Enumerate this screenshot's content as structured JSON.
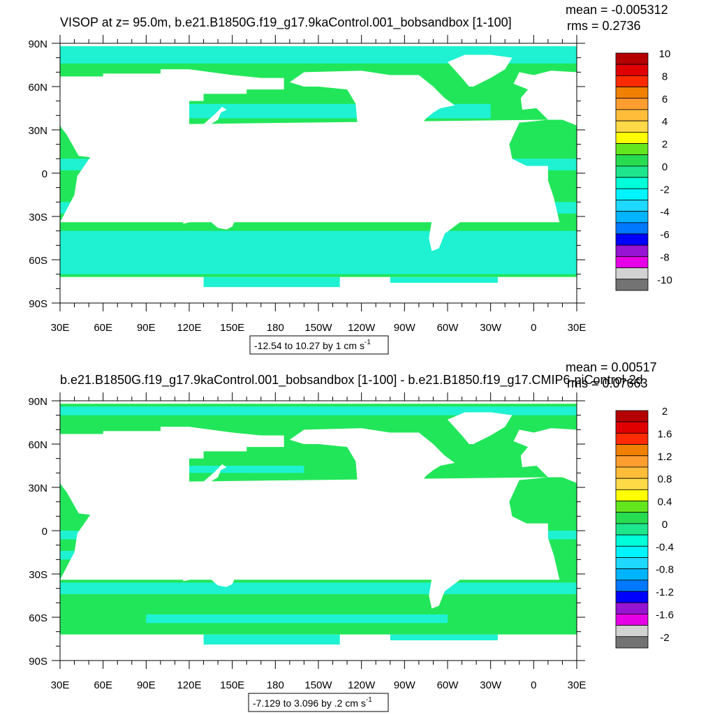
{
  "chart_data": [
    {
      "type": "heatmap",
      "title": "VISOP at z=  95.0m, b.e21.B1850G.f19_g17.9kaControl.001_bobsandbox [1-100]",
      "stats": {
        "mean": "mean = -0.005312",
        "rms": "rms = 0.2736"
      },
      "x_ticks": [
        "30E",
        "60E",
        "90E",
        "120E",
        "150E",
        "180",
        "150W",
        "120W",
        "90W",
        "60W",
        "30W",
        "0",
        "30E"
      ],
      "y_ticks": [
        "90N",
        "60N",
        "30N",
        "0",
        "30S",
        "60S",
        "90S"
      ],
      "xlim": [
        30,
        390
      ],
      "ylim": [
        -90,
        90
      ],
      "colorbar": {
        "labels": [
          "10",
          "8",
          "6",
          "4",
          "2",
          "0",
          "-2",
          "-4",
          "-6",
          "-8",
          "-10"
        ],
        "colors": [
          "#b40000",
          "#e00000",
          "#ff2b00",
          "#f08000",
          "#ff9e30",
          "#ffbd3a",
          "#ffda48",
          "#ffff00",
          "#64e61e",
          "#28dc50",
          "#1ee68c",
          "#00ffd8",
          "#00f4ff",
          "#1ed8ff",
          "#00b4ff",
          "#0078ff",
          "#0000ff",
          "#9614d2",
          "#e600e6",
          "#d2d2d2",
          "#737373"
        ],
        "range": [
          -10,
          10
        ],
        "step": 1
      },
      "footer": "-12.54 to 10.27 by 1 cm s",
      "footer_sup": "-1"
    },
    {
      "type": "heatmap",
      "title": "b.e21.B1850G.f19_g17.9kaControl.001_bobsandbox [1-100] - b.e21.B1850.f19_g17.CMIP6-piControl-2d",
      "stats": {
        "mean": "mean = 0.00517",
        "rms": "rms = 0.07663"
      },
      "x_ticks": [
        "30E",
        "60E",
        "90E",
        "120E",
        "150E",
        "180",
        "150W",
        "120W",
        "90W",
        "60W",
        "30W",
        "0",
        "30E"
      ],
      "y_ticks": [
        "90N",
        "60N",
        "30N",
        "0",
        "30S",
        "60S",
        "90S"
      ],
      "xlim": [
        30,
        390
      ],
      "ylim": [
        -90,
        90
      ],
      "colorbar": {
        "labels": [
          "2",
          "1.6",
          "1.2",
          "0.8",
          "0.4",
          "0",
          "-0.4",
          "-0.8",
          "-1.2",
          "-1.6",
          "-2"
        ],
        "colors": [
          "#b40000",
          "#e00000",
          "#ff2b00",
          "#f08000",
          "#ff9e30",
          "#ffbd3a",
          "#ffda48",
          "#ffff00",
          "#64e61e",
          "#28dc50",
          "#1ee68c",
          "#00ffd8",
          "#00f4ff",
          "#1ed8ff",
          "#00b4ff",
          "#0078ff",
          "#0000ff",
          "#9614d2",
          "#e600e6",
          "#d2d2d2",
          "#737373"
        ],
        "range": [
          -2,
          2
        ],
        "step": 0.2
      },
      "footer": "-7.129 to 3.096 by .2 cm s",
      "footer_sup": "-1"
    }
  ],
  "colors": {
    "ocean_green": "#22e65a",
    "ocean_aqua": "#1ef2d2",
    "land": "#ffffff"
  }
}
